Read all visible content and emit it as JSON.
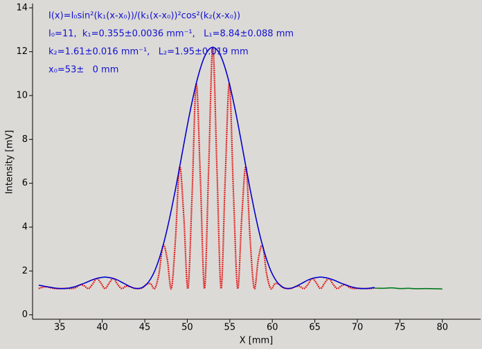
{
  "chart_data": {
    "type": "line",
    "annotations": [
      "I(x)=I₀sin²(k₁(x-x₀))/(k₁(x-x₀))²cos²(k₂(x-x₀))",
      "I₀=11,  k₁=0.355±0.0036 mm⁻¹,   L₁=8.84±0.088 mm",
      "k₂=1.61±0.016 mm⁻¹,   L₂=1.95±0.019 mm",
      "x₀=53±   0 mm"
    ],
    "x_label": "X [mm]",
    "y_label": "Intensity [mV]",
    "xlim": [
      31.8,
      84.5
    ],
    "ylim": [
      -0.2,
      14.2
    ],
    "xticks": [
      35,
      40,
      45,
      50,
      55,
      60,
      65,
      70,
      75,
      80
    ],
    "yticks": [
      0,
      2,
      4,
      6,
      8,
      10,
      12,
      14
    ],
    "series": [
      {
        "color": "#00781e",
        "style": "solid",
        "x": [
          72,
          73,
          74,
          75,
          76,
          77,
          78,
          79,
          80
        ],
        "values": [
          1.22,
          1.21,
          1.23,
          1.2,
          1.21,
          1.19,
          1.2,
          1.19,
          1.18
        ]
      },
      {
        "color": "#e00000",
        "style": "dotted",
        "x": [
          32.525,
          33.0125,
          33.5,
          33.9875,
          34.475,
          34.9625,
          35.45,
          35.9375,
          36.425,
          36.9125,
          37.4,
          37.8875,
          38.375,
          38.8625,
          39.35,
          39.8375,
          40.325,
          40.8125,
          41.3,
          41.7875,
          42.275,
          42.7625,
          43.25,
          43.7375,
          44.225,
          44.7125,
          45.2,
          45.6875,
          46.175,
          46.6625,
          47.15,
          47.6375,
          48.125,
          48.6125,
          49.1,
          49.5875,
          50.075,
          50.5625,
          51.05,
          51.5375,
          52.025,
          52.5125,
          53,
          53.4875,
          53.975,
          54.4625,
          54.95,
          55.4375,
          55.925,
          56.4125,
          56.9,
          57.3875,
          57.875,
          58.3625,
          58.85,
          59.3375,
          59.825,
          60.3125,
          60.8,
          61.2875,
          61.775,
          62.2625,
          62.75,
          63.2375,
          63.725,
          64.2125,
          64.7,
          65.1875,
          65.675,
          66.1625,
          66.65,
          67.1375,
          67.625,
          68.1125,
          68.6,
          69.0875,
          69.575,
          70.0625,
          70.55,
          71.0375,
          71.525,
          72.0125
        ],
        "values": [
          1.2,
          1.26,
          1.28,
          1.23,
          1.2,
          1.2,
          1.2,
          1.21,
          1.2,
          1.25,
          1.37,
          1.32,
          1.2,
          1.4,
          1.66,
          1.45,
          1.2,
          1.45,
          1.66,
          1.4,
          1.2,
          1.3,
          1.29,
          1.21,
          1.2,
          1.23,
          1.39,
          1.42,
          1.2,
          1.86,
          3.16,
          2.56,
          1.2,
          3.47,
          6.74,
          4.49,
          1.2,
          5.46,
          10.55,
          6.22,
          1.2,
          6.65,
          12.2,
          6.65,
          1.2,
          6.22,
          10.55,
          5.46,
          1.2,
          4.49,
          6.74,
          3.47,
          1.2,
          2.56,
          3.16,
          1.86,
          1.2,
          1.42,
          1.39,
          1.23,
          1.2,
          1.21,
          1.29,
          1.3,
          1.2,
          1.4,
          1.66,
          1.45,
          1.2,
          1.45,
          1.66,
          1.4,
          1.2,
          1.32,
          1.37,
          1.25,
          1.2,
          1.21,
          1.2,
          1.2,
          1.2,
          1.23
        ]
      },
      {
        "color": "#0000cc",
        "style": "solid",
        "x": [
          32.525,
          33.0125,
          33.5,
          33.9875,
          34.475,
          34.9625,
          35.45,
          35.9375,
          36.425,
          36.9125,
          37.4,
          37.8875,
          38.375,
          38.8625,
          39.35,
          39.8375,
          40.325,
          40.8125,
          41.3,
          41.7875,
          42.275,
          42.7625,
          43.25,
          43.7375,
          44.225,
          44.7125,
          45.2,
          45.6875,
          46.175,
          46.6625,
          47.15,
          47.6375,
          48.125,
          48.6125,
          49.1,
          49.5875,
          50.075,
          50.5625,
          51.05,
          51.5375,
          52.025,
          52.5125,
          53,
          53.4875,
          53.975,
          54.4625,
          54.95,
          55.4375,
          55.925,
          56.4125,
          56.9,
          57.3875,
          57.875,
          58.3625,
          58.85,
          59.3375,
          59.825,
          60.3125,
          60.8,
          61.2875,
          61.775,
          62.2625,
          62.75,
          63.2375,
          63.725,
          64.2125,
          64.7,
          65.1875,
          65.675,
          66.1625,
          66.65,
          67.1375,
          67.625,
          68.1125,
          68.6,
          69.0875,
          69.575,
          70.0625,
          70.55,
          71.0375,
          71.525,
          72.0125
        ],
        "values": [
          1.35,
          1.32,
          1.28,
          1.25,
          1.22,
          1.2,
          1.2,
          1.21,
          1.25,
          1.3,
          1.37,
          1.44,
          1.52,
          1.6,
          1.66,
          1.7,
          1.72,
          1.7,
          1.66,
          1.59,
          1.49,
          1.39,
          1.29,
          1.22,
          1.2,
          1.25,
          1.39,
          1.64,
          2.01,
          2.52,
          3.16,
          3.92,
          4.79,
          5.73,
          6.74,
          7.77,
          8.78,
          9.71,
          10.55,
          11.24,
          11.77,
          12.09,
          12.2,
          12.09,
          11.77,
          11.24,
          10.55,
          9.71,
          8.78,
          7.77,
          6.74,
          5.73,
          4.79,
          3.92,
          3.16,
          2.52,
          2.01,
          1.64,
          1.39,
          1.25,
          1.2,
          1.22,
          1.29,
          1.39,
          1.49,
          1.59,
          1.66,
          1.7,
          1.72,
          1.7,
          1.66,
          1.6,
          1.52,
          1.44,
          1.37,
          1.3,
          1.25,
          1.21,
          1.2,
          1.2,
          1.22,
          1.25
        ]
      }
    ]
  }
}
